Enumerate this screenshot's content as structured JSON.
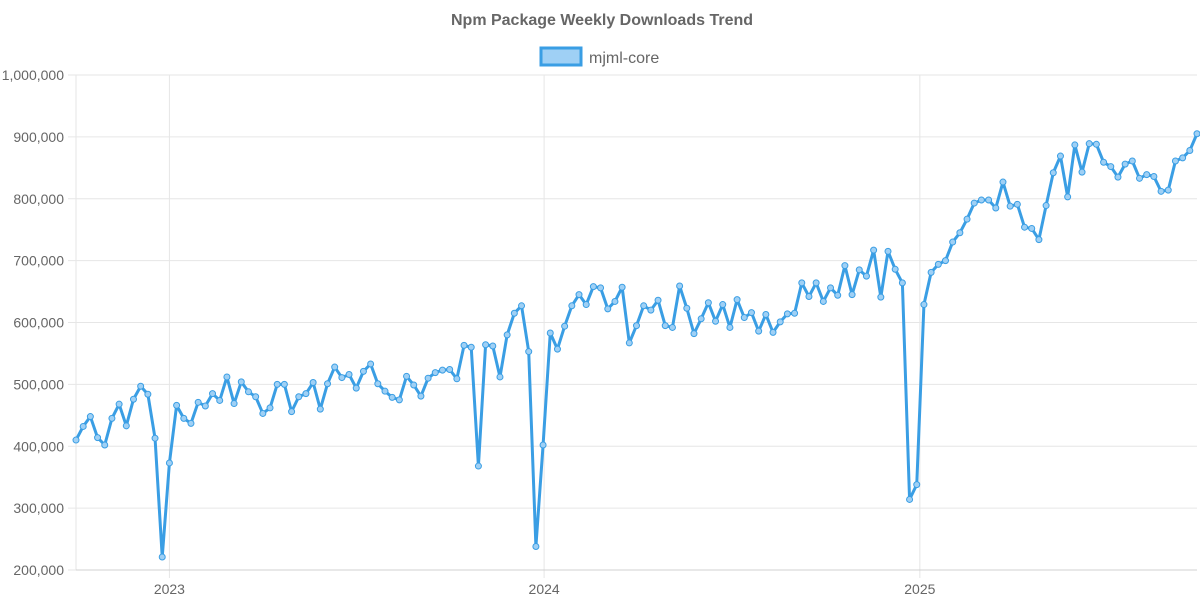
{
  "chart_data": {
    "type": "line",
    "title": "Npm Package Weekly Downloads Trend",
    "xlabel": "",
    "ylabel": "",
    "legend_position": "top-center",
    "grid": true,
    "colors": {
      "line": "#3a9ee4",
      "fill": "#9fd0f5"
    },
    "xlim": [
      "2022-10-02",
      "2025-09-28"
    ],
    "ylim": [
      200000,
      1000000
    ],
    "x_ticks": [
      {
        "date": "2023-01-01",
        "label": "2023"
      },
      {
        "date": "2024-01-01",
        "label": "2024"
      },
      {
        "date": "2025-01-01",
        "label": "2025"
      }
    ],
    "y_ticks": [
      {
        "value": 200000,
        "label": "200,000"
      },
      {
        "value": 300000,
        "label": "300,000"
      },
      {
        "value": 400000,
        "label": "400,000"
      },
      {
        "value": 500000,
        "label": "500,000"
      },
      {
        "value": 600000,
        "label": "600,000"
      },
      {
        "value": 700000,
        "label": "700,000"
      },
      {
        "value": 800000,
        "label": "800,000"
      },
      {
        "value": 900000,
        "label": "900,000"
      },
      {
        "value": 1000000,
        "label": "1,000,000"
      }
    ],
    "series": [
      {
        "name": "mjml-core",
        "points": [
          {
            "x": "2022-10-02",
            "y": 410000
          },
          {
            "x": "2022-10-09",
            "y": 432000
          },
          {
            "x": "2022-10-16",
            "y": 448000
          },
          {
            "x": "2022-10-23",
            "y": 414000
          },
          {
            "x": "2022-10-30",
            "y": 402000
          },
          {
            "x": "2022-11-06",
            "y": 445000
          },
          {
            "x": "2022-11-13",
            "y": 468000
          },
          {
            "x": "2022-11-20",
            "y": 433000
          },
          {
            "x": "2022-11-27",
            "y": 476000
          },
          {
            "x": "2022-12-04",
            "y": 497000
          },
          {
            "x": "2022-12-11",
            "y": 484000
          },
          {
            "x": "2022-12-18",
            "y": 413000
          },
          {
            "x": "2022-12-25",
            "y": 221000
          },
          {
            "x": "2023-01-01",
            "y": 373000
          },
          {
            "x": "2023-01-08",
            "y": 466000
          },
          {
            "x": "2023-01-15",
            "y": 445000
          },
          {
            "x": "2023-01-22",
            "y": 437000
          },
          {
            "x": "2023-01-29",
            "y": 471000
          },
          {
            "x": "2023-02-05",
            "y": 465000
          },
          {
            "x": "2023-02-12",
            "y": 485000
          },
          {
            "x": "2023-02-19",
            "y": 474000
          },
          {
            "x": "2023-02-26",
            "y": 512000
          },
          {
            "x": "2023-03-05",
            "y": 469000
          },
          {
            "x": "2023-03-12",
            "y": 504000
          },
          {
            "x": "2023-03-19",
            "y": 488000
          },
          {
            "x": "2023-03-26",
            "y": 480000
          },
          {
            "x": "2023-04-02",
            "y": 453000
          },
          {
            "x": "2023-04-09",
            "y": 462000
          },
          {
            "x": "2023-04-16",
            "y": 500000
          },
          {
            "x": "2023-04-23",
            "y": 500000
          },
          {
            "x": "2023-04-30",
            "y": 456000
          },
          {
            "x": "2023-05-07",
            "y": 480000
          },
          {
            "x": "2023-05-14",
            "y": 485000
          },
          {
            "x": "2023-05-21",
            "y": 503000
          },
          {
            "x": "2023-05-28",
            "y": 460000
          },
          {
            "x": "2023-06-04",
            "y": 501000
          },
          {
            "x": "2023-06-11",
            "y": 528000
          },
          {
            "x": "2023-06-18",
            "y": 511000
          },
          {
            "x": "2023-06-25",
            "y": 516000
          },
          {
            "x": "2023-07-02",
            "y": 494000
          },
          {
            "x": "2023-07-09",
            "y": 521000
          },
          {
            "x": "2023-07-16",
            "y": 533000
          },
          {
            "x": "2023-07-23",
            "y": 501000
          },
          {
            "x": "2023-07-30",
            "y": 489000
          },
          {
            "x": "2023-08-06",
            "y": 479000
          },
          {
            "x": "2023-08-13",
            "y": 475000
          },
          {
            "x": "2023-08-20",
            "y": 513000
          },
          {
            "x": "2023-08-27",
            "y": 499000
          },
          {
            "x": "2023-09-03",
            "y": 481000
          },
          {
            "x": "2023-09-10",
            "y": 510000
          },
          {
            "x": "2023-09-17",
            "y": 519000
          },
          {
            "x": "2023-09-24",
            "y": 523000
          },
          {
            "x": "2023-10-01",
            "y": 524000
          },
          {
            "x": "2023-10-08",
            "y": 509000
          },
          {
            "x": "2023-10-15",
            "y": 563000
          },
          {
            "x": "2023-10-22",
            "y": 560000
          },
          {
            "x": "2023-10-29",
            "y": 368000
          },
          {
            "x": "2023-11-05",
            "y": 564000
          },
          {
            "x": "2023-11-12",
            "y": 562000
          },
          {
            "x": "2023-11-19",
            "y": 512000
          },
          {
            "x": "2023-11-26",
            "y": 580000
          },
          {
            "x": "2023-12-03",
            "y": 615000
          },
          {
            "x": "2023-12-10",
            "y": 627000
          },
          {
            "x": "2023-12-17",
            "y": 553000
          },
          {
            "x": "2023-12-24",
            "y": 238000
          },
          {
            "x": "2023-12-31",
            "y": 402000
          },
          {
            "x": "2024-01-07",
            "y": 583000
          },
          {
            "x": "2024-01-14",
            "y": 557000
          },
          {
            "x": "2024-01-21",
            "y": 594000
          },
          {
            "x": "2024-01-28",
            "y": 627000
          },
          {
            "x": "2024-02-04",
            "y": 645000
          },
          {
            "x": "2024-02-11",
            "y": 629000
          },
          {
            "x": "2024-02-18",
            "y": 658000
          },
          {
            "x": "2024-02-25",
            "y": 656000
          },
          {
            "x": "2024-03-03",
            "y": 622000
          },
          {
            "x": "2024-03-10",
            "y": 634000
          },
          {
            "x": "2024-03-17",
            "y": 657000
          },
          {
            "x": "2024-03-24",
            "y": 567000
          },
          {
            "x": "2024-03-31",
            "y": 595000
          },
          {
            "x": "2024-04-07",
            "y": 627000
          },
          {
            "x": "2024-04-14",
            "y": 620000
          },
          {
            "x": "2024-04-21",
            "y": 636000
          },
          {
            "x": "2024-04-28",
            "y": 595000
          },
          {
            "x": "2024-05-05",
            "y": 592000
          },
          {
            "x": "2024-05-12",
            "y": 659000
          },
          {
            "x": "2024-05-19",
            "y": 623000
          },
          {
            "x": "2024-05-26",
            "y": 582000
          },
          {
            "x": "2024-06-02",
            "y": 606000
          },
          {
            "x": "2024-06-09",
            "y": 632000
          },
          {
            "x": "2024-06-16",
            "y": 602000
          },
          {
            "x": "2024-06-23",
            "y": 629000
          },
          {
            "x": "2024-06-30",
            "y": 592000
          },
          {
            "x": "2024-07-07",
            "y": 637000
          },
          {
            "x": "2024-07-14",
            "y": 608000
          },
          {
            "x": "2024-07-21",
            "y": 616000
          },
          {
            "x": "2024-07-28",
            "y": 586000
          },
          {
            "x": "2024-08-04",
            "y": 613000
          },
          {
            "x": "2024-08-11",
            "y": 584000
          },
          {
            "x": "2024-08-18",
            "y": 601000
          },
          {
            "x": "2024-08-25",
            "y": 614000
          },
          {
            "x": "2024-09-01",
            "y": 615000
          },
          {
            "x": "2024-09-08",
            "y": 664000
          },
          {
            "x": "2024-09-15",
            "y": 642000
          },
          {
            "x": "2024-09-22",
            "y": 664000
          },
          {
            "x": "2024-09-29",
            "y": 634000
          },
          {
            "x": "2024-10-06",
            "y": 656000
          },
          {
            "x": "2024-10-13",
            "y": 644000
          },
          {
            "x": "2024-10-20",
            "y": 692000
          },
          {
            "x": "2024-10-27",
            "y": 645000
          },
          {
            "x": "2024-11-03",
            "y": 685000
          },
          {
            "x": "2024-11-10",
            "y": 675000
          },
          {
            "x": "2024-11-17",
            "y": 717000
          },
          {
            "x": "2024-11-24",
            "y": 641000
          },
          {
            "x": "2024-12-01",
            "y": 715000
          },
          {
            "x": "2024-12-08",
            "y": 686000
          },
          {
            "x": "2024-12-15",
            "y": 664000
          },
          {
            "x": "2024-12-22",
            "y": 314000
          },
          {
            "x": "2024-12-29",
            "y": 338000
          },
          {
            "x": "2025-01-05",
            "y": 629000
          },
          {
            "x": "2025-01-12",
            "y": 681000
          },
          {
            "x": "2025-01-19",
            "y": 694000
          },
          {
            "x": "2025-01-26",
            "y": 700000
          },
          {
            "x": "2025-02-02",
            "y": 730000
          },
          {
            "x": "2025-02-09",
            "y": 745000
          },
          {
            "x": "2025-02-16",
            "y": 767000
          },
          {
            "x": "2025-02-23",
            "y": 793000
          },
          {
            "x": "2025-03-02",
            "y": 798000
          },
          {
            "x": "2025-03-09",
            "y": 798000
          },
          {
            "x": "2025-03-16",
            "y": 785000
          },
          {
            "x": "2025-03-23",
            "y": 827000
          },
          {
            "x": "2025-03-30",
            "y": 788000
          },
          {
            "x": "2025-04-06",
            "y": 791000
          },
          {
            "x": "2025-04-13",
            "y": 754000
          },
          {
            "x": "2025-04-20",
            "y": 752000
          },
          {
            "x": "2025-04-27",
            "y": 734000
          },
          {
            "x": "2025-05-04",
            "y": 789000
          },
          {
            "x": "2025-05-11",
            "y": 842000
          },
          {
            "x": "2025-05-18",
            "y": 869000
          },
          {
            "x": "2025-05-25",
            "y": 803000
          },
          {
            "x": "2025-06-01",
            "y": 887000
          },
          {
            "x": "2025-06-08",
            "y": 843000
          },
          {
            "x": "2025-06-15",
            "y": 889000
          },
          {
            "x": "2025-06-22",
            "y": 888000
          },
          {
            "x": "2025-06-29",
            "y": 859000
          },
          {
            "x": "2025-07-06",
            "y": 852000
          },
          {
            "x": "2025-07-13",
            "y": 835000
          },
          {
            "x": "2025-07-20",
            "y": 856000
          },
          {
            "x": "2025-07-27",
            "y": 861000
          },
          {
            "x": "2025-08-03",
            "y": 833000
          },
          {
            "x": "2025-08-10",
            "y": 839000
          },
          {
            "x": "2025-08-17",
            "y": 836000
          },
          {
            "x": "2025-08-24",
            "y": 812000
          },
          {
            "x": "2025-08-31",
            "y": 814000
          },
          {
            "x": "2025-09-07",
            "y": 861000
          },
          {
            "x": "2025-09-14",
            "y": 866000
          },
          {
            "x": "2025-09-21",
            "y": 878000
          },
          {
            "x": "2025-09-28",
            "y": 905000
          }
        ]
      }
    ]
  }
}
